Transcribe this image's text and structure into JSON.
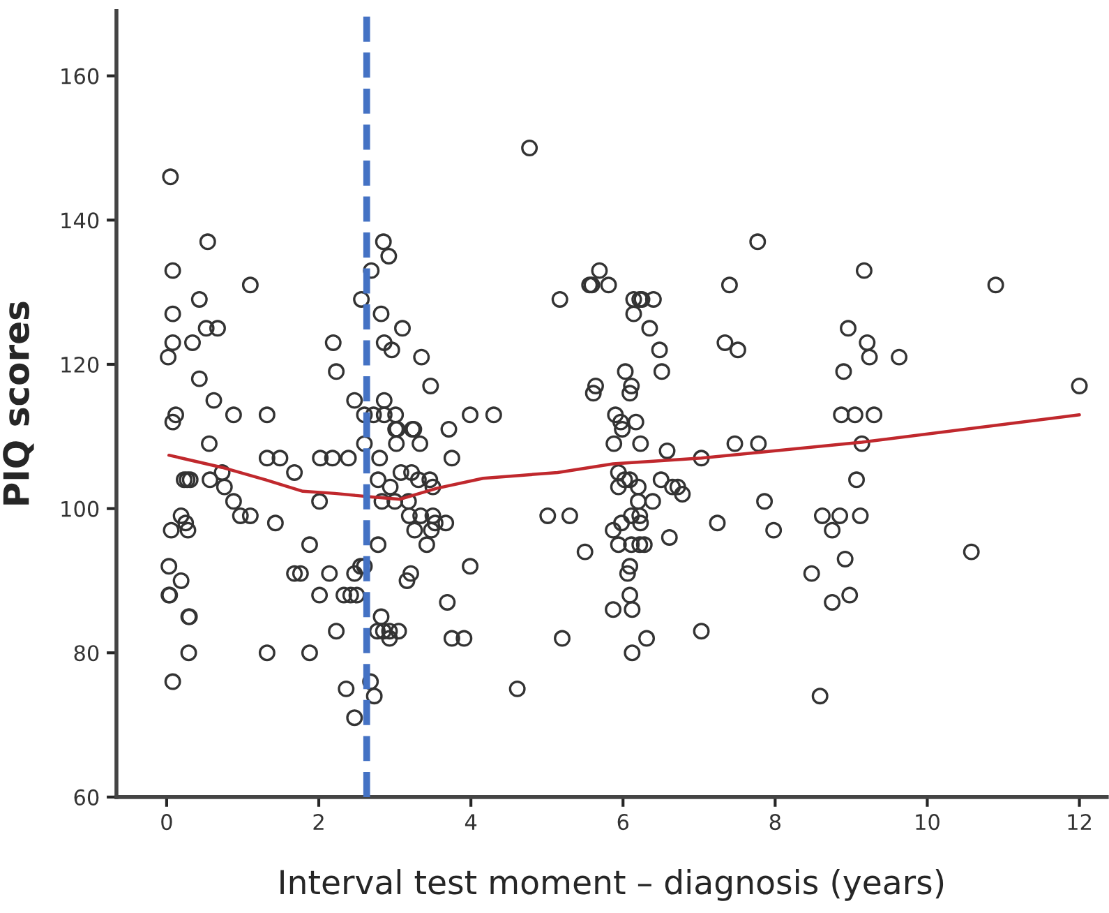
{
  "chart_data": {
    "type": "scatter",
    "xlabel": "Interval test moment – diagnosis (years)",
    "ylabel": "PIQ scores",
    "xlim": [
      -0.66,
      12.36
    ],
    "ylim": [
      60,
      169
    ],
    "xticks": [
      0,
      2,
      4,
      6,
      8,
      10,
      12
    ],
    "yticks": [
      60,
      80,
      100,
      120,
      140,
      160
    ],
    "grid": false,
    "marker": "circle",
    "series": [
      {
        "color": "#333333",
        "x": [
          0.05,
          0.54,
          0.08,
          1.1,
          0.43,
          0.08,
          0.52,
          0.67,
          0.08,
          0.34,
          0.02,
          2.19,
          2.23,
          0.43,
          0.62,
          2.47,
          0.12,
          0.08,
          0.88,
          1.32,
          2.56,
          0.56,
          2.6,
          2.6,
          1.32,
          1.49,
          2.02,
          2.18,
          2.39,
          1.68,
          0.73,
          0.57,
          0.23,
          0.27,
          0.31,
          0.76,
          0.88,
          2.01,
          0.19,
          0.97,
          1.1,
          0.25,
          0.28,
          0.06,
          1.43,
          1.88,
          0.03,
          0.19,
          0.03,
          0.04,
          1.68,
          1.76,
          2.14,
          2.47,
          2.55,
          2.6,
          2.01,
          2.33,
          2.42,
          2.5,
          0.29,
          0.3,
          2.23,
          0.29,
          1.32,
          1.88,
          0.08,
          2.36,
          2.47,
          2.68,
          2.73,
          4.77,
          2.85,
          2.92,
          2.69,
          2.82,
          3.1,
          2.86,
          2.96,
          3.35,
          3.47,
          2.86,
          2.72,
          2.86,
          3.01,
          3.01,
          3.03,
          3.23,
          3.25,
          3.71,
          3.99,
          4.3,
          3.02,
          3.33,
          3.75,
          2.8,
          5.69,
          5.56,
          5.59,
          5.81,
          5.17,
          6.14,
          6.22,
          6.25,
          6.4,
          6.14,
          6.35,
          6.48,
          6.03,
          6.51,
          5.64,
          5.61,
          6.11,
          6.09,
          5.9,
          5.97,
          5.99,
          6.17,
          5.88,
          6.23,
          6.58,
          7.03,
          7.77,
          7.4,
          9.17,
          10.9,
          8.96,
          7.34,
          7.51,
          9.21,
          9.24,
          9.63,
          8.9,
          12.0,
          8.87,
          9.05,
          9.3,
          7.47,
          7.78,
          9.14,
          2.78,
          3.08,
          3.22,
          3.31,
          3.46,
          2.94,
          3.5,
          2.83,
          3.0,
          3.18,
          3.19,
          3.34,
          3.5,
          3.53,
          3.67,
          3.26,
          3.48,
          2.78,
          3.42,
          3.99,
          3.21,
          3.16,
          3.69,
          2.82,
          2.77,
          2.85,
          2.93,
          3.05,
          2.93,
          3.75,
          3.91,
          4.61,
          5.01,
          5.3,
          5.5,
          5.2,
          5.87,
          5.98,
          6.11,
          6.22,
          6.23,
          5.94,
          6.11,
          6.22,
          6.28,
          6.09,
          6.06,
          6.09,
          5.87,
          6.12,
          6.12,
          6.31,
          6.61,
          7.03,
          5.94,
          6.02,
          6.09,
          5.94,
          6.2,
          6.2,
          6.39,
          6.5,
          6.65,
          6.72,
          6.78,
          7.86,
          7.24,
          7.98,
          8.62,
          8.85,
          9.12,
          8.75,
          8.92,
          8.48,
          8.75,
          8.98,
          9.07,
          8.59,
          10.58
        ],
        "values": [
          146,
          137,
          133,
          131,
          129,
          127,
          125,
          125,
          123,
          123,
          121,
          123,
          119,
          118,
          115,
          115,
          113,
          112,
          113,
          113,
          129,
          109,
          109,
          113,
          107,
          107,
          107,
          107,
          107,
          105,
          105,
          104,
          104,
          104,
          104,
          103,
          101,
          101,
          99,
          99,
          99,
          98,
          97,
          97,
          98,
          95,
          92,
          90,
          88,
          88,
          91,
          91,
          91,
          91,
          92,
          92,
          88,
          88,
          88,
          88,
          85,
          85,
          83,
          80,
          80,
          80,
          76,
          75,
          71,
          76,
          74,
          150,
          137,
          135,
          133,
          127,
          125,
          123,
          122,
          121,
          117,
          115,
          113,
          113,
          113,
          111,
          111,
          111,
          111,
          111,
          113,
          113,
          109,
          109,
          107,
          107,
          133,
          131,
          131,
          131,
          129,
          129,
          129,
          129,
          129,
          127,
          125,
          122,
          119,
          119,
          117,
          116,
          117,
          116,
          113,
          112,
          111,
          112,
          109,
          109,
          108,
          107,
          137,
          131,
          133,
          131,
          125,
          123,
          122,
          123,
          121,
          121,
          119,
          117,
          113,
          113,
          113,
          109,
          109,
          109,
          104,
          105,
          105,
          104,
          104,
          103,
          103,
          101,
          101,
          101,
          99,
          99,
          99,
          98,
          98,
          97,
          97,
          95,
          95,
          92,
          91,
          90,
          87,
          85,
          83,
          83,
          83,
          83,
          82,
          82,
          82,
          75,
          99,
          99,
          94,
          82,
          97,
          98,
          99,
          99,
          98,
          95,
          95,
          95,
          95,
          92,
          91,
          88,
          86,
          86,
          80,
          82,
          96,
          83,
          105,
          104,
          104,
          103,
          103,
          101,
          101,
          104,
          103,
          103,
          102,
          101,
          98,
          97,
          99,
          99,
          99,
          97,
          93,
          91,
          87,
          88,
          104,
          74,
          94
        ]
      },
      {
        "type": "line",
        "color": "#c0282d",
        "marker": "none",
        "line_style": "solid",
        "x": [
          0.03,
          0.73,
          1.3,
          1.79,
          2.21,
          2.7,
          3.07,
          3.55,
          4.16,
          5.14,
          5.87,
          7.03,
          9.14,
          12.0
        ],
        "values": [
          107.4,
          105.7,
          104.0,
          102.4,
          102.1,
          101.6,
          101.3,
          102.8,
          104.2,
          105.0,
          106.2,
          107.0,
          109.2,
          113.0
        ]
      }
    ],
    "ref_lines": [
      {
        "axis": "x",
        "value": 2.63,
        "color": "#4472c4",
        "line_style": "dashed"
      }
    ]
  }
}
